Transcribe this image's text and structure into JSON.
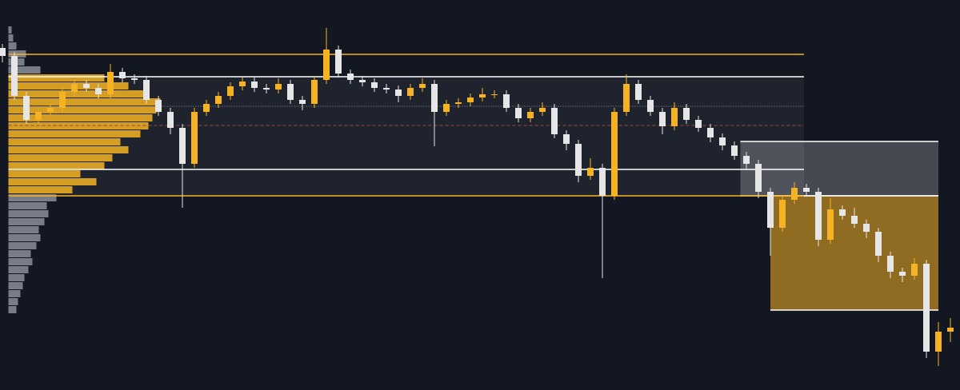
{
  "chart_data": {
    "type": "candlestick",
    "xlim": [
      -0.2,
      79.8
    ],
    "ylim": [
      0,
      488
    ],
    "up_color": "#f5b323",
    "down_color": "#e6e6e6",
    "background": "#131722",
    "ohlc": [
      [
        428,
        433,
        410,
        418
      ],
      [
        418,
        423,
        363,
        368
      ],
      [
        368,
        373,
        333,
        338
      ],
      [
        338,
        353,
        333,
        348
      ],
      [
        348,
        358,
        343,
        353
      ],
      [
        353,
        378,
        348,
        373
      ],
      [
        373,
        388,
        368,
        383
      ],
      [
        383,
        388,
        373,
        378
      ],
      [
        378,
        383,
        365,
        370
      ],
      [
        370,
        408,
        365,
        398
      ],
      [
        398,
        403,
        385,
        390
      ],
      [
        390,
        395,
        383,
        388
      ],
      [
        388,
        393,
        358,
        363
      ],
      [
        363,
        368,
        343,
        348
      ],
      [
        348,
        353,
        320,
        328
      ],
      [
        328,
        333,
        228,
        283
      ],
      [
        283,
        353,
        278,
        348
      ],
      [
        348,
        363,
        343,
        358
      ],
      [
        358,
        373,
        353,
        368
      ],
      [
        368,
        385,
        363,
        380
      ],
      [
        380,
        392,
        375,
        386
      ],
      [
        386,
        391,
        373,
        378
      ],
      [
        378,
        383,
        371,
        376
      ],
      [
        376,
        390,
        371,
        383
      ],
      [
        383,
        388,
        358,
        363
      ],
      [
        363,
        368,
        350,
        358
      ],
      [
        358,
        393,
        353,
        388
      ],
      [
        388,
        453,
        383,
        426
      ],
      [
        426,
        431,
        391,
        396
      ],
      [
        396,
        401,
        383,
        388
      ],
      [
        388,
        393,
        380,
        385
      ],
      [
        385,
        390,
        373,
        378
      ],
      [
        378,
        383,
        371,
        376
      ],
      [
        376,
        381,
        360,
        368
      ],
      [
        368,
        383,
        363,
        378
      ],
      [
        378,
        390,
        373,
        383
      ],
      [
        383,
        388,
        305,
        348
      ],
      [
        348,
        363,
        343,
        358
      ],
      [
        358,
        365,
        353,
        360
      ],
      [
        360,
        371,
        355,
        366
      ],
      [
        366,
        378,
        361,
        370
      ],
      [
        370,
        375,
        365,
        370
      ],
      [
        370,
        375,
        348,
        353
      ],
      [
        353,
        358,
        335,
        340
      ],
      [
        340,
        353,
        335,
        348
      ],
      [
        348,
        360,
        343,
        353
      ],
      [
        353,
        358,
        315,
        320
      ],
      [
        320,
        325,
        300,
        308
      ],
      [
        308,
        313,
        260,
        268
      ],
      [
        268,
        290,
        263,
        278
      ],
      [
        278,
        283,
        140,
        243
      ],
      [
        243,
        353,
        238,
        348
      ],
      [
        348,
        395,
        343,
        383
      ],
      [
        383,
        388,
        358,
        363
      ],
      [
        363,
        368,
        343,
        348
      ],
      [
        348,
        353,
        320,
        330
      ],
      [
        330,
        360,
        325,
        353
      ],
      [
        353,
        358,
        333,
        338
      ],
      [
        338,
        343,
        323,
        328
      ],
      [
        328,
        333,
        310,
        316
      ],
      [
        316,
        321,
        300,
        306
      ],
      [
        306,
        311,
        288,
        293
      ],
      [
        293,
        298,
        276,
        283
      ],
      [
        283,
        288,
        240,
        248
      ],
      [
        248,
        253,
        168,
        203
      ],
      [
        203,
        243,
        198,
        238
      ],
      [
        238,
        260,
        233,
        253
      ],
      [
        253,
        258,
        243,
        248
      ],
      [
        248,
        253,
        180,
        188
      ],
      [
        188,
        240,
        183,
        226
      ],
      [
        226,
        231,
        213,
        218
      ],
      [
        218,
        228,
        203,
        208
      ],
      [
        208,
        213,
        190,
        198
      ],
      [
        198,
        203,
        160,
        168
      ],
      [
        168,
        173,
        140,
        148
      ],
      [
        148,
        153,
        135,
        143
      ],
      [
        143,
        165,
        138,
        158
      ],
      [
        158,
        163,
        40,
        48
      ],
      [
        48,
        85,
        30,
        73
      ],
      [
        73,
        90,
        60,
        78
      ]
    ],
    "profile": {
      "levels": [
        100,
        110,
        120,
        130,
        140,
        150,
        160,
        170,
        180,
        190,
        200,
        210,
        220,
        230,
        240,
        250,
        260,
        270,
        280,
        290,
        300,
        310,
        320,
        330,
        340,
        350,
        360,
        370,
        380,
        390,
        400,
        410,
        420,
        430,
        440,
        450
      ],
      "volumes": [
        10,
        12,
        15,
        18,
        20,
        25,
        30,
        28,
        35,
        40,
        38,
        45,
        50,
        48,
        60,
        80,
        110,
        90,
        120,
        130,
        150,
        140,
        165,
        175,
        180,
        185,
        190,
        170,
        150,
        120,
        40,
        20,
        22,
        10,
        6,
        4
      ],
      "in_color": "#f5b323",
      "out_color": "#8a8e99"
    },
    "value_area": {
      "low": 243,
      "high": 392,
      "x_start": 0.5,
      "x_end": 66.8,
      "color": "#1f232d"
    },
    "levels": [
      {
        "value": 420,
        "color": "#f5b323",
        "style": "solid"
      },
      {
        "value": 392,
        "color": "#ffffff",
        "style": "solid"
      },
      {
        "value": 355,
        "color": "#8a8e99",
        "style": "dotted"
      },
      {
        "value": 331,
        "color": "#9a4a3a",
        "style": "dashed"
      },
      {
        "value": 276,
        "color": "#ffffff",
        "style": "solid"
      },
      {
        "value": 243,
        "color": "#f5b323",
        "style": "solid"
      }
    ],
    "boxes": [
      {
        "x_start": 61.5,
        "x_end": 78,
        "low": 243,
        "high": 311,
        "color": "#ffffff",
        "opacity": 0.22
      },
      {
        "x_start": 64,
        "x_end": 78,
        "low": 100,
        "high": 243,
        "color": "#f5b323",
        "opacity": 0.55
      }
    ]
  }
}
